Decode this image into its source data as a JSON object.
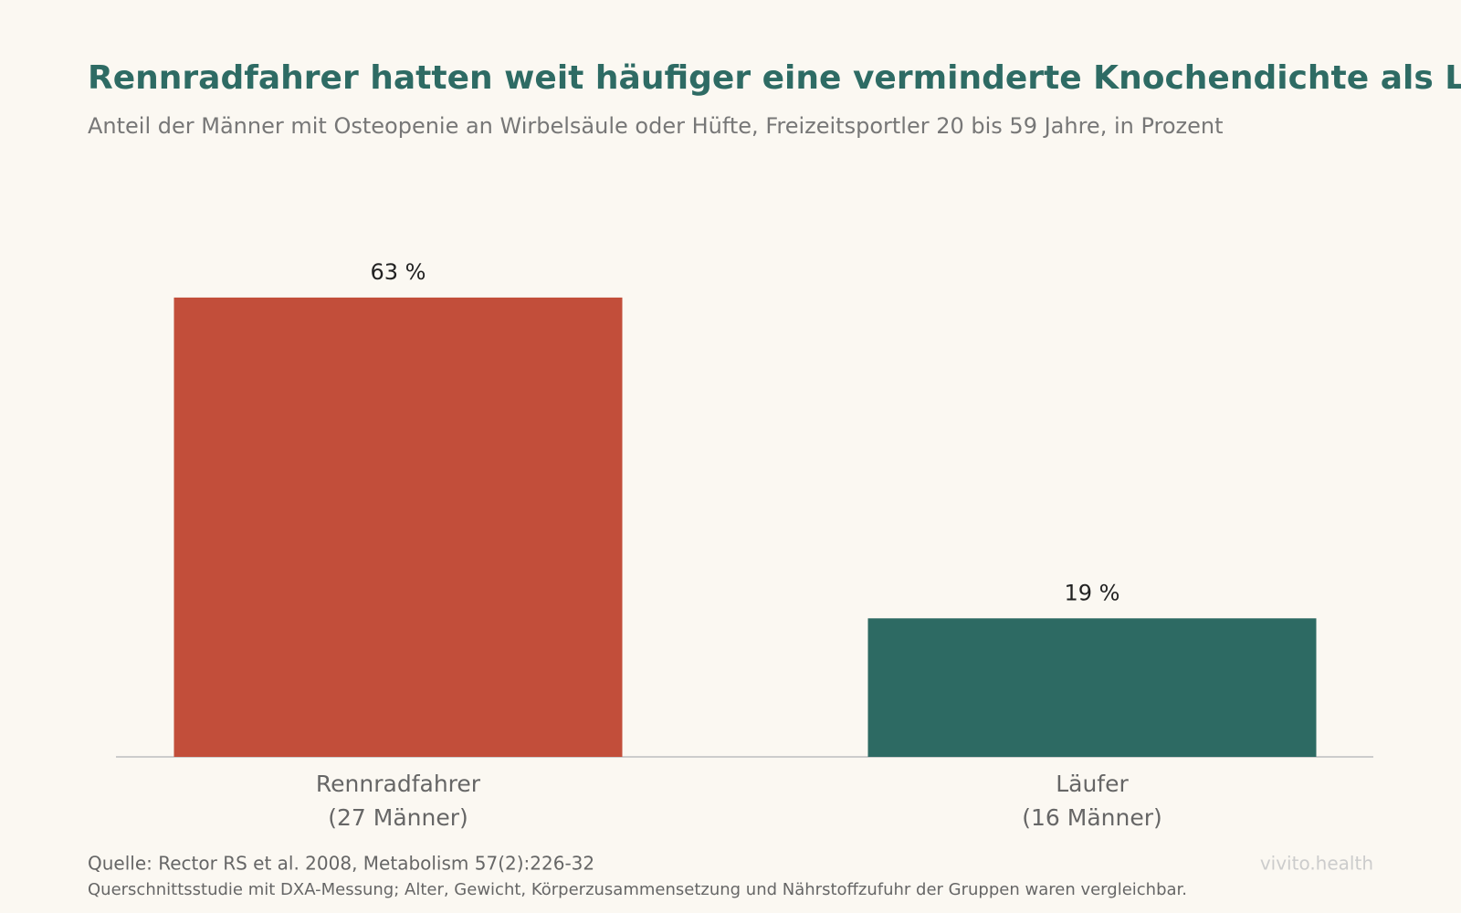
{
  "chart_data": {
    "type": "bar",
    "title": "Rennradfahrer hatten weit häufiger eine verminderte Knochendichte als Läufer",
    "subtitle": "Anteil der Männer mit Osteopenie an Wirbelsäule oder Hüfte, Freizeitsportler 20 bis 59 Jahre, in Prozent",
    "categories": [
      "Rennradfahrer",
      "Läufer"
    ],
    "category_notes": [
      "(27 Männer)",
      "(16 Männer)"
    ],
    "values": [
      63,
      19
    ],
    "value_labels": [
      "63 %",
      "19 %"
    ],
    "colors": [
      "#c24e3a",
      "#2d6a63"
    ],
    "ylim": [
      0,
      70
    ],
    "source": "Quelle: Rector RS et al. 2008, Metabolism 57(2):226-32",
    "note": "Querschnittsstudie mit DXA-Messung; Alter, Gewicht, Körperzusammensetzung und Nährstoffzufuhr der Gruppen waren vergleichbar.",
    "brand": "vivito.health"
  }
}
